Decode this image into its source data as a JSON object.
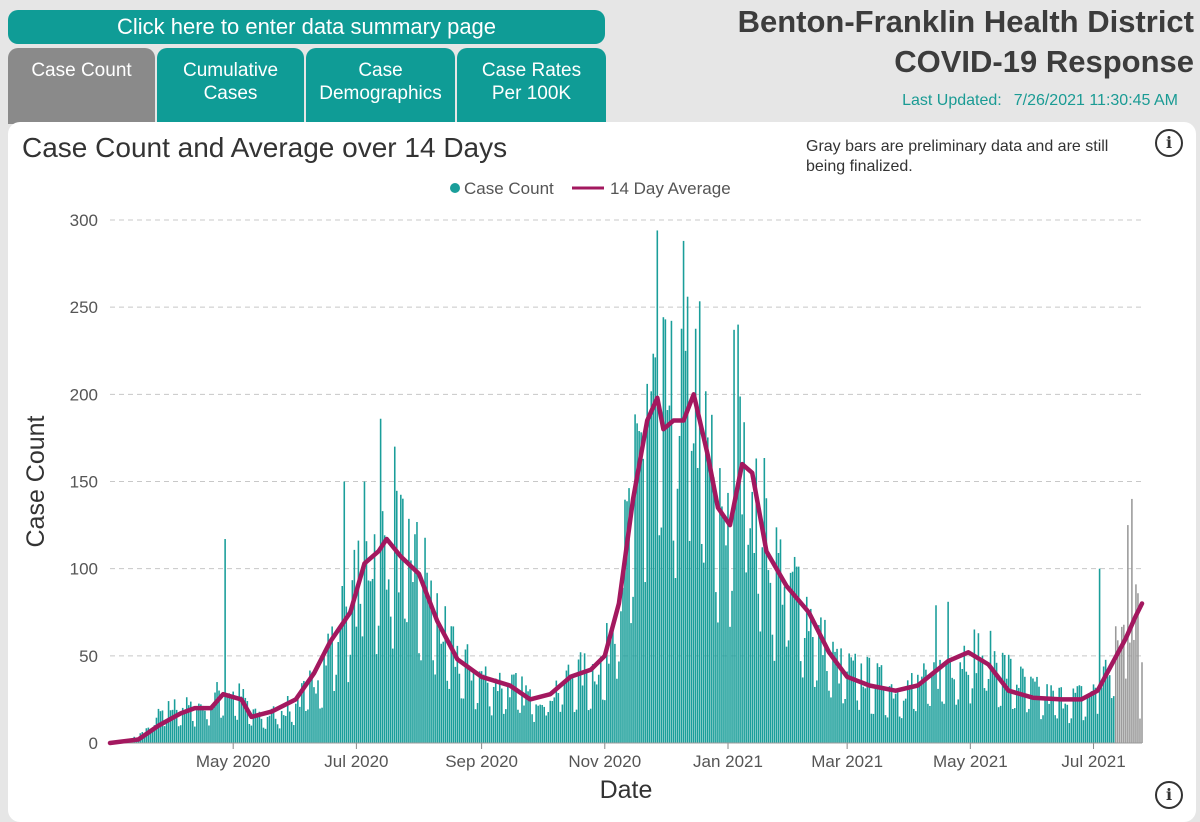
{
  "nav": {
    "summary_button": "Click here to enter data summary page",
    "tabs": [
      {
        "label": "Case Count",
        "active": true
      },
      {
        "label": "Cumulative\nCases",
        "active": false
      },
      {
        "label": "Case\nDemographics",
        "active": false
      },
      {
        "label": "Case Rates\nPer 100K",
        "active": false
      }
    ]
  },
  "header": {
    "title_line1": "Benton-Franklin Health District",
    "title_line2": "COVID-19 Response",
    "updated_label": "Last Updated:",
    "updated_value": "7/26/2021 11:30:45 AM"
  },
  "chart_note": "Gray bars are preliminary data and are still being finalized.",
  "icons": [
    "info-icon",
    "info-icon"
  ],
  "colors": {
    "bars": "#1a9e9a",
    "average": "#a3185f",
    "preliminary": "#9a9a9a",
    "accent": "#0f9c96"
  },
  "chart_data": {
    "type": "bar",
    "title": "Case Count and Average over 14 Days",
    "xlabel": "Date",
    "ylabel": "Case Count",
    "ylim": [
      0,
      300
    ],
    "yticks": [
      0,
      50,
      100,
      150,
      200,
      250,
      300
    ],
    "xticks": [
      "May 2020",
      "Jul 2020",
      "Sep 2020",
      "Nov 2020",
      "Jan 2021",
      "Mar 2021",
      "May 2021",
      "Jul 2021"
    ],
    "grid": true,
    "legend": "top-center",
    "x_start": "2020-03-01",
    "x_end": "2021-07-25",
    "preliminary_from": "2021-07-12",
    "series": [
      {
        "name": "Case Count",
        "type": "bar",
        "anchors": [
          [
            "2020-03-01",
            0
          ],
          [
            "2020-03-10",
            1
          ],
          [
            "2020-03-18",
            6
          ],
          [
            "2020-03-25",
            15
          ],
          [
            "2020-04-01",
            20
          ],
          [
            "2020-04-10",
            20
          ],
          [
            "2020-04-20",
            22
          ],
          [
            "2020-04-25",
            30
          ],
          [
            "2020-05-05",
            26
          ],
          [
            "2020-05-12",
            15
          ],
          [
            "2020-05-20",
            16
          ],
          [
            "2020-06-01",
            22
          ],
          [
            "2020-06-10",
            35
          ],
          [
            "2020-06-20",
            60
          ],
          [
            "2020-06-30",
            85
          ],
          [
            "2020-07-10",
            110
          ],
          [
            "2020-07-17",
            115
          ],
          [
            "2020-07-25",
            110
          ],
          [
            "2020-08-05",
            90
          ],
          [
            "2020-08-15",
            55
          ],
          [
            "2020-08-25",
            43
          ],
          [
            "2020-09-05",
            35
          ],
          [
            "2020-09-15",
            33
          ],
          [
            "2020-09-25",
            26
          ],
          [
            "2020-10-05",
            28
          ],
          [
            "2020-10-15",
            38
          ],
          [
            "2020-10-25",
            40
          ],
          [
            "2020-11-01",
            45
          ],
          [
            "2020-11-10",
            100
          ],
          [
            "2020-11-20",
            170
          ],
          [
            "2020-11-28",
            200
          ],
          [
            "2020-12-05",
            180
          ],
          [
            "2020-12-12",
            190
          ],
          [
            "2020-12-18",
            195
          ],
          [
            "2020-12-25",
            140
          ],
          [
            "2021-01-01",
            130
          ],
          [
            "2021-01-08",
            160
          ],
          [
            "2021-01-15",
            140
          ],
          [
            "2021-01-25",
            100
          ],
          [
            "2021-02-05",
            85
          ],
          [
            "2021-02-15",
            60
          ],
          [
            "2021-02-25",
            42
          ],
          [
            "2021-03-10",
            38
          ],
          [
            "2021-03-25",
            30
          ],
          [
            "2021-04-10",
            35
          ],
          [
            "2021-04-25",
            48
          ],
          [
            "2021-05-05",
            52
          ],
          [
            "2021-05-15",
            45
          ],
          [
            "2021-05-25",
            35
          ],
          [
            "2021-06-05",
            27
          ],
          [
            "2021-06-20",
            25
          ],
          [
            "2021-07-01",
            28
          ],
          [
            "2021-07-10",
            45
          ],
          [
            "2021-07-15",
            60
          ],
          [
            "2021-07-25",
            80
          ]
        ],
        "peaks": [
          [
            "2020-04-27",
            117
          ],
          [
            "2020-07-13",
            186
          ],
          [
            "2020-07-05",
            150
          ],
          [
            "2020-06-25",
            150
          ],
          [
            "2020-07-20",
            170
          ],
          [
            "2020-11-27",
            294
          ],
          [
            "2020-11-22",
            206
          ],
          [
            "2020-12-01",
            243
          ],
          [
            "2020-12-10",
            288
          ],
          [
            "2020-12-12",
            256
          ],
          [
            "2021-01-04",
            237
          ],
          [
            "2021-01-06",
            240
          ],
          [
            "2021-01-09",
            184
          ],
          [
            "2021-04-20",
            81
          ],
          [
            "2021-04-14",
            79
          ],
          [
            "2021-07-04",
            100
          ],
          [
            "2021-07-20",
            140
          ],
          [
            "2021-07-18",
            125
          ],
          [
            "2021-07-22",
            91
          ],
          [
            "2021-07-24",
            14
          ]
        ]
      },
      {
        "name": "14 Day Average",
        "type": "line",
        "points": [
          [
            "2020-03-01",
            0
          ],
          [
            "2020-03-15",
            2
          ],
          [
            "2020-03-25",
            10
          ],
          [
            "2020-04-05",
            17
          ],
          [
            "2020-04-12",
            20
          ],
          [
            "2020-04-20",
            20
          ],
          [
            "2020-04-26",
            28
          ],
          [
            "2020-05-05",
            25
          ],
          [
            "2020-05-10",
            15
          ],
          [
            "2020-05-20",
            18
          ],
          [
            "2020-06-01",
            25
          ],
          [
            "2020-06-10",
            40
          ],
          [
            "2020-06-18",
            58
          ],
          [
            "2020-06-28",
            75
          ],
          [
            "2020-07-05",
            103
          ],
          [
            "2020-07-12",
            110
          ],
          [
            "2020-07-16",
            117
          ],
          [
            "2020-07-23",
            107
          ],
          [
            "2020-08-01",
            97
          ],
          [
            "2020-08-10",
            70
          ],
          [
            "2020-08-20",
            48
          ],
          [
            "2020-09-01",
            38
          ],
          [
            "2020-09-15",
            33
          ],
          [
            "2020-09-25",
            25
          ],
          [
            "2020-10-05",
            28
          ],
          [
            "2020-10-15",
            38
          ],
          [
            "2020-10-25",
            42
          ],
          [
            "2020-11-01",
            50
          ],
          [
            "2020-11-08",
            80
          ],
          [
            "2020-11-15",
            140
          ],
          [
            "2020-11-22",
            185
          ],
          [
            "2020-11-27",
            198
          ],
          [
            "2020-11-30",
            180
          ],
          [
            "2020-12-05",
            185
          ],
          [
            "2020-12-10",
            185
          ],
          [
            "2020-12-15",
            200
          ],
          [
            "2020-12-22",
            165
          ],
          [
            "2020-12-27",
            135
          ],
          [
            "2021-01-02",
            125
          ],
          [
            "2021-01-08",
            160
          ],
          [
            "2021-01-13",
            155
          ],
          [
            "2021-01-20",
            110
          ],
          [
            "2021-01-30",
            90
          ],
          [
            "2021-02-10",
            75
          ],
          [
            "2021-02-20",
            52
          ],
          [
            "2021-03-01",
            38
          ],
          [
            "2021-03-12",
            33
          ],
          [
            "2021-03-25",
            30
          ],
          [
            "2021-04-05",
            33
          ],
          [
            "2021-04-20",
            47
          ],
          [
            "2021-04-30",
            52
          ],
          [
            "2021-05-10",
            45
          ],
          [
            "2021-05-20",
            30
          ],
          [
            "2021-06-01",
            26
          ],
          [
            "2021-06-15",
            25
          ],
          [
            "2021-06-25",
            25
          ],
          [
            "2021-07-03",
            30
          ],
          [
            "2021-07-10",
            45
          ],
          [
            "2021-07-17",
            60
          ],
          [
            "2021-07-22",
            73
          ],
          [
            "2021-07-25",
            80
          ]
        ]
      }
    ]
  }
}
